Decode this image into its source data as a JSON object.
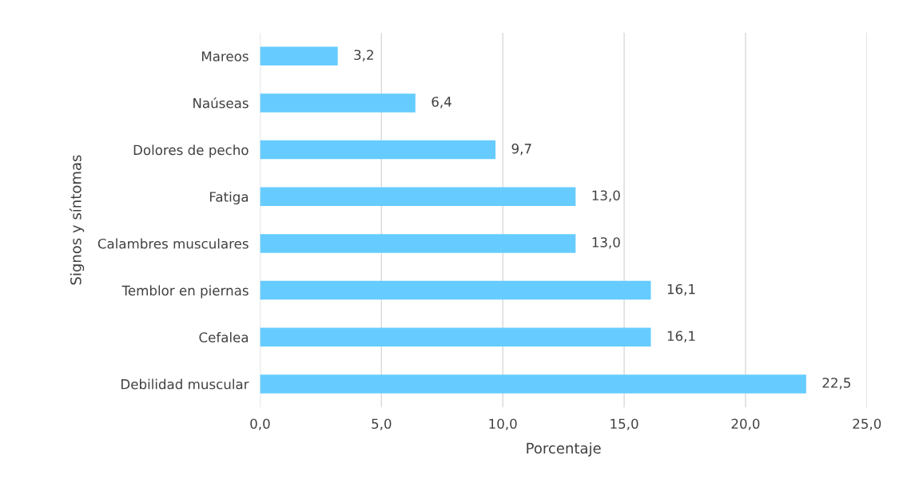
{
  "chart_data": {
    "type": "bar",
    "orientation": "horizontal",
    "xlabel": "Porcentaje",
    "ylabel": "Signos y síntomas",
    "categories": [
      "Mareos",
      "Naúseas",
      "Dolores de pecho",
      "Fatiga",
      "Calambres musculares",
      "Temblor en piernas",
      "Cefalea",
      "Debilidad muscular"
    ],
    "values": [
      3.2,
      6.4,
      9.7,
      13.0,
      13.0,
      16.1,
      16.1,
      22.5
    ],
    "value_labels": [
      "3,2",
      "6,4",
      "9,7",
      "13,0",
      "13,0",
      "16,1",
      "16,1",
      "22,5"
    ],
    "color": "#66ccff",
    "xlim": [
      0,
      25
    ],
    "xticks": [
      {
        "value": 0,
        "label": "0,0"
      },
      {
        "value": 5,
        "label": "5,0"
      },
      {
        "value": 10,
        "label": "10,0"
      },
      {
        "value": 15,
        "label": "15,0"
      },
      {
        "value": 20,
        "label": "20,0"
      },
      {
        "value": 25,
        "label": "25,0"
      }
    ],
    "grid": "x"
  }
}
